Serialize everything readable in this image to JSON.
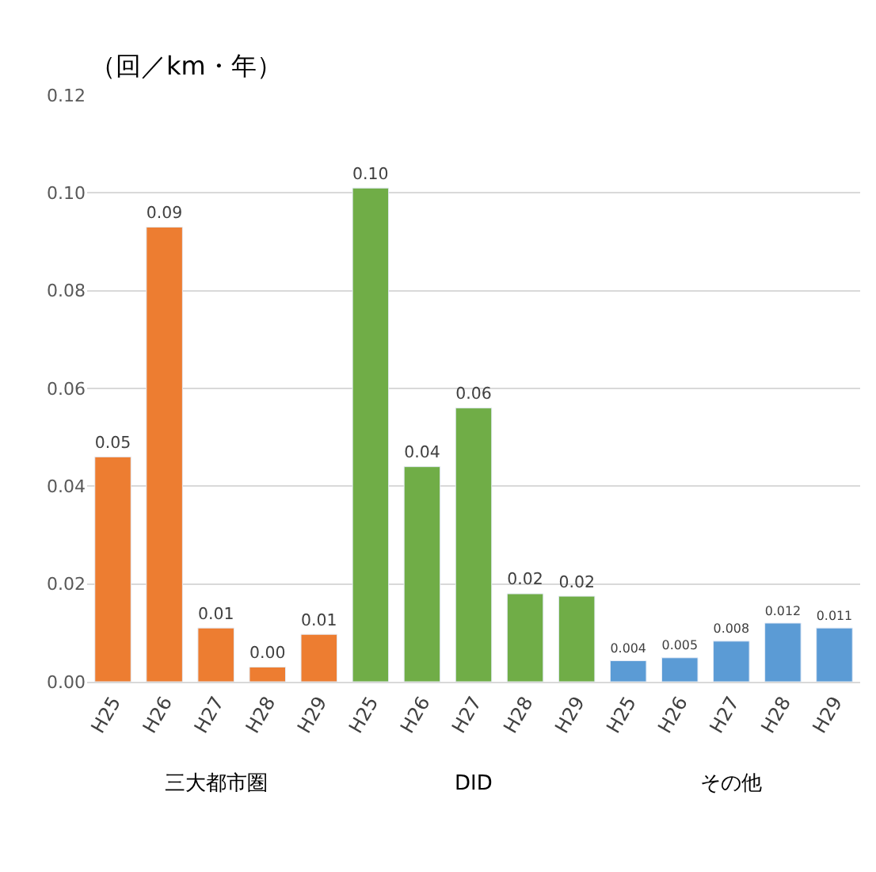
{
  "chart_data": {
    "type": "bar",
    "ylabel": "（回／km・年）",
    "categories": [
      "H25",
      "H26",
      "H27",
      "H28",
      "H29",
      "H25",
      "H26",
      "H27",
      "H28",
      "H29",
      "H25",
      "H26",
      "H27",
      "H28",
      "H29"
    ],
    "values": [
      0.046,
      0.093,
      0.011,
      0.003,
      0.0097,
      0.101,
      0.044,
      0.056,
      0.018,
      0.0175,
      0.0043,
      0.0049,
      0.0083,
      0.012,
      0.011
    ],
    "value_labels": [
      "0.05",
      "0.09",
      "0.01",
      "0.00",
      "0.01",
      "0.10",
      "0.04",
      "0.06",
      "0.02",
      "0.02",
      "0.004",
      "0.005",
      "0.008",
      "0.012",
      "0.011"
    ],
    "colors": [
      "#ed7d31",
      "#ed7d31",
      "#ed7d31",
      "#ed7d31",
      "#ed7d31",
      "#70ad47",
      "#70ad47",
      "#70ad47",
      "#70ad47",
      "#70ad47",
      "#5b9bd5",
      "#5b9bd5",
      "#5b9bd5",
      "#5b9bd5",
      "#5b9bd5"
    ],
    "annotations": [
      "三大都市圏",
      "DID",
      "その他"
    ],
    "ylim": [
      0,
      0.12
    ],
    "yticks": [
      {
        "value": 0,
        "label": "0.00"
      },
      {
        "value": 0.02,
        "label": "0.02"
      },
      {
        "value": 0.04,
        "label": "0.04"
      },
      {
        "value": 0.06,
        "label": "0.06"
      },
      {
        "value": 0.08,
        "label": "0.08"
      },
      {
        "value": 0.1,
        "label": "0.10"
      },
      {
        "value": 0.12,
        "label": "0.12"
      }
    ],
    "grid": "y"
  }
}
